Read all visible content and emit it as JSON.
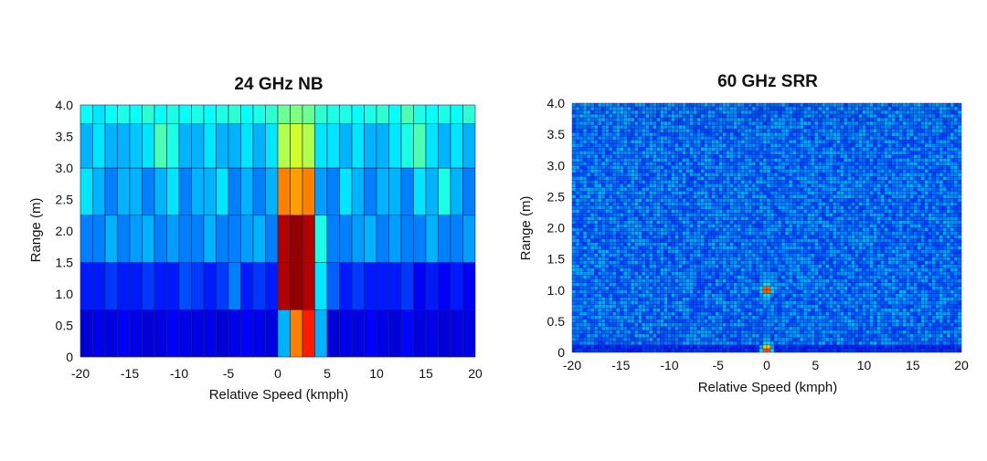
{
  "colors": {
    "colormap": [
      "#00008f",
      "#0000ff",
      "#0080ff",
      "#00ffff",
      "#80ff80",
      "#ffff00",
      "#ff8000",
      "#ff0000",
      "#800000"
    ]
  },
  "chart_data": [
    {
      "type": "heatmap",
      "title": "24 GHz NB",
      "xlabel": "Relative Speed (kmph)",
      "ylabel": "Range (m)",
      "xlim": [
        -20,
        20
      ],
      "ylim": [
        0,
        4.0
      ],
      "xticks": [
        "-20",
        "-15",
        "-10",
        "-5",
        "0",
        "5",
        "10",
        "15",
        "20"
      ],
      "yticks": [
        "0",
        "0.5",
        "1.0",
        "1.5",
        "2.0",
        "2.5",
        "3.0",
        "3.5",
        "4.0"
      ],
      "x_bins": [
        -20,
        20,
        32
      ],
      "y_edges": [
        0,
        0.75,
        1.5,
        2.25,
        3.0,
        3.7,
        4.0
      ],
      "matrix": [
        [
          0.08,
          0.1,
          0.09,
          0.12,
          0.1,
          0.08,
          0.09,
          0.12,
          0.1,
          0.09,
          0.1,
          0.08,
          0.1,
          0.12,
          0.1,
          0.09,
          0.3,
          0.75,
          0.85,
          0.3,
          0.08,
          0.1,
          0.09,
          0.12,
          0.1,
          0.08,
          0.13,
          0.09,
          0.1,
          0.08,
          0.09,
          0.1
        ],
        [
          0.15,
          0.15,
          0.18,
          0.15,
          0.15,
          0.18,
          0.15,
          0.15,
          0.2,
          0.18,
          0.15,
          0.18,
          0.25,
          0.15,
          0.18,
          0.15,
          0.95,
          0.98,
          0.95,
          0.35,
          0.22,
          0.15,
          0.18,
          0.15,
          0.15,
          0.15,
          0.18,
          0.12,
          0.15,
          0.12,
          0.15,
          0.12
        ],
        [
          0.25,
          0.25,
          0.3,
          0.25,
          0.28,
          0.3,
          0.25,
          0.28,
          0.25,
          0.25,
          0.3,
          0.25,
          0.25,
          0.28,
          0.3,
          0.25,
          0.95,
          0.98,
          0.95,
          0.4,
          0.25,
          0.25,
          0.28,
          0.3,
          0.25,
          0.28,
          0.25,
          0.25,
          0.3,
          0.25,
          0.25,
          0.28
        ],
        [
          0.35,
          0.3,
          0.25,
          0.3,
          0.3,
          0.25,
          0.3,
          0.35,
          0.25,
          0.3,
          0.3,
          0.35,
          0.25,
          0.3,
          0.25,
          0.3,
          0.75,
          0.72,
          0.75,
          0.28,
          0.25,
          0.35,
          0.3,
          0.25,
          0.3,
          0.3,
          0.25,
          0.35,
          0.3,
          0.4,
          0.3,
          0.25
        ],
        [
          0.3,
          0.35,
          0.3,
          0.3,
          0.32,
          0.35,
          0.45,
          0.4,
          0.3,
          0.3,
          0.35,
          0.3,
          0.3,
          0.35,
          0.3,
          0.35,
          0.55,
          0.58,
          0.55,
          0.35,
          0.35,
          0.3,
          0.35,
          0.3,
          0.3,
          0.35,
          0.4,
          0.45,
          0.35,
          0.3,
          0.35,
          0.3
        ],
        [
          0.38,
          0.35,
          0.38,
          0.4,
          0.38,
          0.42,
          0.38,
          0.4,
          0.38,
          0.4,
          0.38,
          0.4,
          0.42,
          0.38,
          0.4,
          0.42,
          0.48,
          0.5,
          0.48,
          0.42,
          0.4,
          0.4,
          0.38,
          0.4,
          0.42,
          0.38,
          0.45,
          0.4,
          0.38,
          0.4,
          0.38,
          0.42
        ]
      ]
    },
    {
      "type": "heatmap",
      "title": "60 GHz SRR",
      "xlabel": "Relative Speed (kmph)",
      "ylabel": "Range (m)",
      "xlim": [
        -20,
        20
      ],
      "ylim": [
        0,
        4.0
      ],
      "xticks": [
        "-20",
        "-15",
        "-10",
        "-5",
        "0",
        "5",
        "10",
        "15",
        "20"
      ],
      "yticks": [
        "0",
        "0.5",
        "1.0",
        "1.5",
        "2.0",
        "2.5",
        "3.0",
        "3.5",
        "4.0"
      ],
      "background_level": 0.24,
      "hotspots": [
        {
          "x": 0,
          "y": 1.0,
          "level": 1.0
        },
        {
          "x": 0,
          "y": 0.05,
          "level": 0.95
        }
      ]
    }
  ]
}
